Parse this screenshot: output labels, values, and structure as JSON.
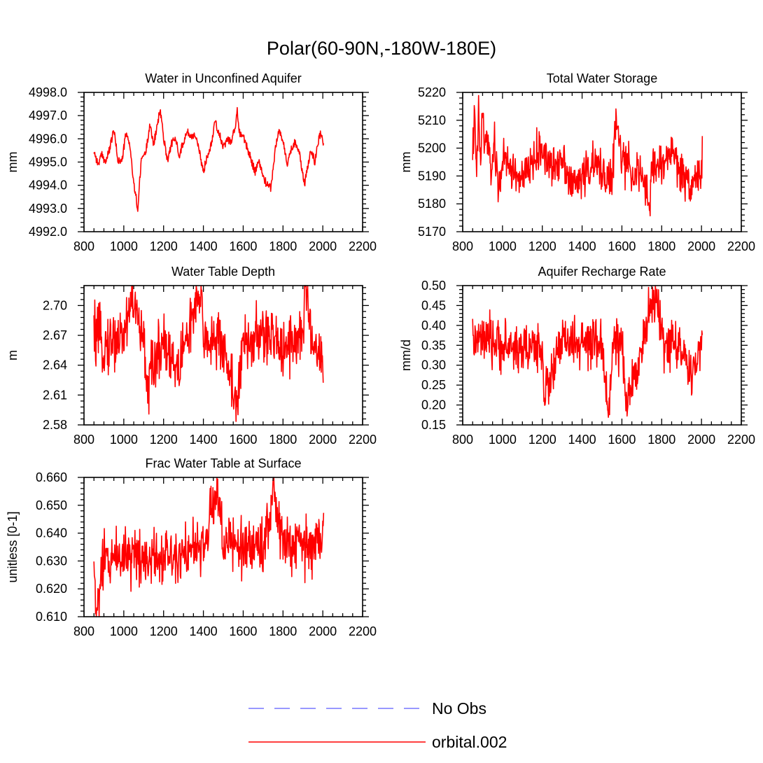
{
  "figure": {
    "title": "Polar(60-90N,-180W-180E)"
  },
  "colors": {
    "model": "#ff0000",
    "obs": "#7777ff"
  },
  "legend": {
    "entries": [
      {
        "label": "No Obs",
        "style": "dashed",
        "color": "#7777ff"
      },
      {
        "label": "orbital.002",
        "style": "solid",
        "color": "#ff0000"
      }
    ]
  },
  "chart_data": [
    {
      "id": "aquifer-water",
      "type": "line",
      "title": "Water in Unconfined Aquifer",
      "ylabel": "mm",
      "xlabel": "",
      "xlim": [
        800,
        2200
      ],
      "ylim": [
        4992.0,
        4998.0
      ],
      "xticks": [
        800,
        1000,
        1200,
        1400,
        1600,
        1800,
        2000,
        2200
      ],
      "yticks": [
        4992.0,
        4993.0,
        4994.0,
        4995.0,
        4996.0,
        4997.0,
        4998.0
      ],
      "ytick_decimals": 1,
      "series": [
        {
          "name": "orbital.002",
          "x": [
            850,
            870,
            890,
            910,
            930,
            950,
            970,
            990,
            1010,
            1030,
            1050,
            1060,
            1070,
            1080,
            1090,
            1110,
            1130,
            1150,
            1170,
            1180,
            1190,
            1200,
            1220,
            1240,
            1260,
            1280,
            1300,
            1320,
            1340,
            1360,
            1380,
            1400,
            1420,
            1440,
            1460,
            1470,
            1480,
            1500,
            1520,
            1540,
            1560,
            1570,
            1580,
            1600,
            1620,
            1640,
            1660,
            1680,
            1700,
            1720,
            1740,
            1760,
            1780,
            1800,
            1820,
            1840,
            1860,
            1880,
            1900,
            1910,
            1920,
            1940,
            1960,
            1980,
            1990,
            2000,
            2005
          ],
          "values": [
            5.5,
            4.9,
            5.3,
            5.0,
            5.6,
            6.4,
            5.1,
            5.0,
            6.2,
            5.8,
            4.0,
            3.6,
            2.9,
            4.2,
            5.2,
            5.4,
            6.6,
            5.8,
            6.6,
            7.2,
            6.9,
            6.0,
            5.1,
            5.8,
            6.0,
            5.3,
            5.9,
            6.3,
            6.1,
            6.2,
            5.4,
            4.6,
            5.3,
            5.8,
            6.9,
            6.4,
            6.2,
            5.6,
            6.0,
            5.9,
            6.5,
            7.2,
            6.3,
            6.1,
            5.6,
            5.1,
            4.6,
            5.0,
            4.4,
            4.0,
            3.9,
            5.5,
            6.4,
            5.9,
            4.9,
            5.5,
            5.9,
            5.5,
            4.4,
            4.1,
            4.6,
            5.6,
            5.0,
            6.0,
            6.3,
            5.9,
            5.7
          ],
          "value_offset": 4990.0
        }
      ]
    },
    {
      "id": "total-water",
      "type": "line",
      "title": "Total Water Storage",
      "ylabel": "mm",
      "xlabel": "",
      "xlim": [
        800,
        2200
      ],
      "ylim": [
        5170,
        5220
      ],
      "xticks": [
        800,
        1000,
        1200,
        1400,
        1600,
        1800,
        2000,
        2200
      ],
      "yticks": [
        5170,
        5180,
        5190,
        5200,
        5210,
        5220
      ],
      "ytick_decimals": 0,
      "series": [
        {
          "name": "orbital.002",
          "x": [
            850,
            860,
            870,
            880,
            890,
            900,
            910,
            920,
            940,
            960,
            980,
            1000,
            1050,
            1100,
            1150,
            1200,
            1250,
            1300,
            1350,
            1400,
            1450,
            1500,
            1550,
            1570,
            1600,
            1650,
            1700,
            1740,
            1750,
            1800,
            1850,
            1900,
            1950,
            2000,
            2005
          ],
          "values": [
            5200,
            5210,
            5190,
            5212,
            5195,
            5215,
            5198,
            5206,
            5192,
            5200,
            5185,
            5196,
            5192,
            5188,
            5195,
            5200,
            5192,
            5198,
            5186,
            5190,
            5194,
            5192,
            5188,
            5210,
            5196,
            5192,
            5190,
            5178,
            5195,
            5193,
            5200,
            5190,
            5188,
            5192,
            5196
          ],
          "noise": 5.5,
          "value_offset": 0
        }
      ]
    },
    {
      "id": "water-table-depth",
      "type": "line",
      "title": "Water Table Depth",
      "ylabel": "m",
      "xlabel": "",
      "xlim": [
        800,
        2200
      ],
      "ylim": [
        2.58,
        2.72
      ],
      "xticks": [
        800,
        1000,
        1200,
        1400,
        1600,
        1800,
        2000,
        2200
      ],
      "yticks": [
        2.58,
        2.61,
        2.64,
        2.67,
        2.7
      ],
      "ytick_decimals": 2,
      "series": [
        {
          "name": "orbital.002",
          "x": [
            850,
            900,
            1000,
            1040,
            1100,
            1120,
            1200,
            1270,
            1300,
            1390,
            1400,
            1500,
            1570,
            1600,
            1700,
            1800,
            1900,
            1910,
            1950,
            2000,
            2005
          ],
          "values": [
            2.67,
            2.66,
            2.67,
            2.71,
            2.66,
            2.62,
            2.67,
            2.63,
            2.66,
            2.71,
            2.67,
            2.66,
            2.6,
            2.66,
            2.67,
            2.66,
            2.67,
            2.72,
            2.66,
            2.65,
            2.63
          ],
          "noise": 0.022,
          "value_offset": 0
        }
      ]
    },
    {
      "id": "recharge-rate",
      "type": "line",
      "title": "Aquifer Recharge Rate",
      "ylabel": "mm/d",
      "xlabel": "",
      "xlim": [
        800,
        2200
      ],
      "ylim": [
        0.15,
        0.5
      ],
      "xticks": [
        800,
        1000,
        1200,
        1400,
        1600,
        1800,
        2000,
        2200
      ],
      "yticks": [
        0.15,
        0.2,
        0.25,
        0.3,
        0.35,
        0.4,
        0.45,
        0.5
      ],
      "ytick_decimals": 2,
      "series": [
        {
          "name": "orbital.002",
          "x": [
            850,
            900,
            1000,
            1100,
            1200,
            1210,
            1300,
            1400,
            1500,
            1530,
            1560,
            1600,
            1620,
            1700,
            1770,
            1800,
            1900,
            1950,
            2000,
            2005
          ],
          "values": [
            0.36,
            0.36,
            0.35,
            0.34,
            0.35,
            0.22,
            0.36,
            0.35,
            0.35,
            0.19,
            0.36,
            0.35,
            0.19,
            0.35,
            0.49,
            0.36,
            0.35,
            0.25,
            0.36,
            0.38
          ],
          "noise": 0.045,
          "value_offset": 0
        }
      ]
    },
    {
      "id": "frac-water-table",
      "type": "line",
      "title": "Frac Water Table at Surface",
      "ylabel": "unitless [0-1]",
      "xlabel": "",
      "xlim": [
        800,
        2200
      ],
      "ylim": [
        0.61,
        0.66
      ],
      "xticks": [
        800,
        1000,
        1200,
        1400,
        1600,
        1800,
        2000,
        2200
      ],
      "yticks": [
        0.61,
        0.62,
        0.63,
        0.64,
        0.65,
        0.66
      ],
      "ytick_decimals": 3,
      "series": [
        {
          "name": "orbital.002",
          "x": [
            850,
            860,
            900,
            1000,
            1100,
            1200,
            1300,
            1400,
            1470,
            1500,
            1600,
            1700,
            1750,
            1800,
            1900,
            2000,
            2005
          ],
          "values": [
            0.628,
            0.611,
            0.63,
            0.633,
            0.632,
            0.632,
            0.634,
            0.634,
            0.657,
            0.636,
            0.635,
            0.636,
            0.654,
            0.636,
            0.635,
            0.637,
            0.645
          ],
          "noise": 0.0075,
          "value_offset": 0
        }
      ]
    }
  ]
}
